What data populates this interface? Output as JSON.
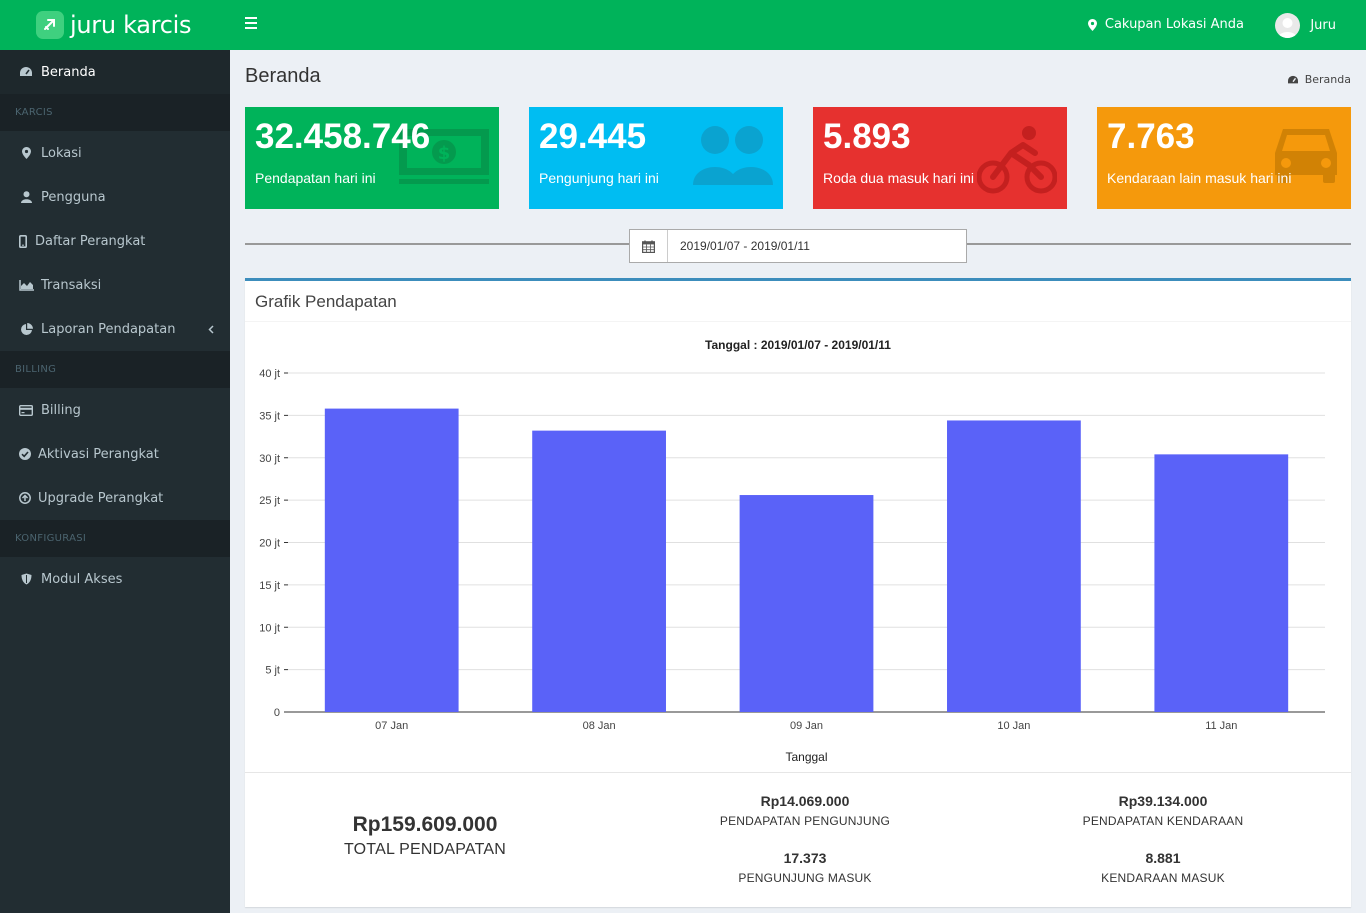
{
  "app": {
    "title": "juru karcis"
  },
  "header": {
    "location_label": "Cakupan Lokasi Anda",
    "user_name": "Juru"
  },
  "sidebar": {
    "items": [
      {
        "label": "Beranda",
        "icon": "dashboard-icon"
      },
      {
        "header": "KARCIS"
      },
      {
        "label": "Lokasi",
        "icon": "map-marker-icon"
      },
      {
        "label": "Pengguna",
        "icon": "user-icon"
      },
      {
        "label": "Daftar Perangkat",
        "icon": "mobile-icon"
      },
      {
        "label": "Transaksi",
        "icon": "area-chart-icon"
      },
      {
        "label": "Laporan Pendapatan",
        "icon": "pie-chart-icon"
      },
      {
        "header": "BILLING"
      },
      {
        "label": "Billing",
        "icon": "credit-card-icon"
      },
      {
        "label": "Aktivasi Perangkat",
        "icon": "check-circle-icon"
      },
      {
        "label": "Upgrade Perangkat",
        "icon": "arrow-circle-up-icon"
      },
      {
        "header": "KONFIGURASI"
      },
      {
        "label": "Modul Akses",
        "icon": "shield-icon"
      }
    ]
  },
  "page": {
    "title": "Beranda",
    "breadcrumb": "Beranda"
  },
  "stats": [
    {
      "value": "32.458.746",
      "label": "Pendapatan hari ini",
      "color": "#00a65a",
      "icon": "money-icon"
    },
    {
      "value": "29.445",
      "label": "Pengunjung hari ini",
      "color": "#00c0ef",
      "icon": "users-icon"
    },
    {
      "value": "5.893",
      "label": "Roda dua masuk hari ini",
      "color": "#e6312f",
      "icon": "bicycle-icon"
    },
    {
      "value": "7.763",
      "label": "Kendaraan lain masuk hari ini",
      "color": "#f39c12",
      "icon": "car-icon"
    }
  ],
  "daterange": {
    "value": "2019/01/07 - 2019/01/11"
  },
  "box": {
    "title": "Grafik Pendapatan"
  },
  "chart_data": {
    "type": "bar",
    "title": "Tanggal : 2019/01/07 - 2019/01/11",
    "xlabel": "Tanggal",
    "ylabel": "",
    "categories": [
      "07 Jan",
      "08 Jan",
      "09 Jan",
      "10 Jan",
      "11 Jan"
    ],
    "values": [
      35.8,
      33.2,
      25.6,
      34.4,
      30.4
    ],
    "unit_suffix": " jt",
    "ylim": [
      0,
      40
    ],
    "yticks": [
      "0",
      "5 jt",
      "10 jt",
      "15 jt",
      "20 jt",
      "25 jt",
      "30 jt",
      "35 jt",
      "40 jt"
    ],
    "bar_color": "#5a62f8",
    "grid": true
  },
  "summary": {
    "total_value": "Rp159.609.000",
    "total_label": "TOTAL PENDAPATAN",
    "visitor_income_value": "Rp14.069.000",
    "visitor_income_label": "PENDAPATAN PENGUNJUNG",
    "vehicle_income_value": "Rp39.134.000",
    "vehicle_income_label": "PENDAPATAN KENDARAAN",
    "visitor_count_value": "17.373",
    "visitor_count_label": "PENGUNJUNG MASUK",
    "vehicle_count_value": "8.881",
    "vehicle_count_label": "KENDARAAN MASUK"
  }
}
